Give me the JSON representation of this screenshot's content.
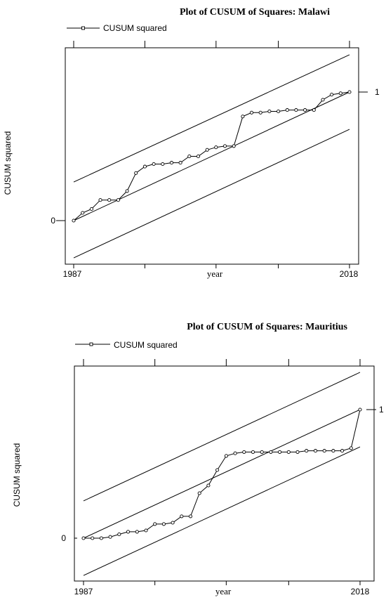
{
  "chart_data": [
    {
      "type": "line",
      "title": "Plot of CUSUM of Squares: Malawi",
      "legend": "CUSUM squared",
      "legend_position": "top-left",
      "xlabel": "year",
      "ylabel": "CUSUM squared",
      "x_tick_labels": [
        "1987",
        "2018"
      ],
      "y_tick_labels": [
        "0",
        "1"
      ],
      "xlim": [
        1987,
        2018
      ],
      "ylim": [
        -0.3,
        1.33
      ],
      "grid": false,
      "series": [
        {
          "name": "CUSUM squared",
          "x": [
            1987,
            1988,
            1989,
            1990,
            1991,
            1992,
            1993,
            1994,
            1995,
            1996,
            1997,
            1998,
            1999,
            2000,
            2001,
            2002,
            2003,
            2004,
            2005,
            2006,
            2007,
            2008,
            2009,
            2010,
            2011,
            2012,
            2013,
            2014,
            2015,
            2016,
            2017,
            2018
          ],
          "values": [
            0.0,
            0.06,
            0.09,
            0.16,
            0.16,
            0.16,
            0.23,
            0.37,
            0.42,
            0.44,
            0.44,
            0.45,
            0.45,
            0.5,
            0.5,
            0.55,
            0.57,
            0.58,
            0.58,
            0.81,
            0.84,
            0.84,
            0.85,
            0.85,
            0.86,
            0.86,
            0.86,
            0.86,
            0.94,
            0.98,
            0.99,
            1.0
          ]
        }
      ],
      "bounds": {
        "center": [
          [
            1987,
            0.0
          ],
          [
            2018,
            1.0
          ]
        ],
        "upper": [
          [
            1987,
            0.3
          ],
          [
            2018,
            1.29
          ]
        ],
        "lower": [
          [
            1987,
            -0.29
          ],
          [
            2018,
            0.71
          ]
        ]
      }
    },
    {
      "type": "line",
      "title": "Plot of CUSUM of Squares: Mauritius",
      "legend": "CUSUM squared",
      "legend_position": "top-left",
      "xlabel": "year",
      "ylabel": "CUSUM squared",
      "x_tick_labels": [
        "1987",
        "2018"
      ],
      "y_tick_labels": [
        "0",
        "1"
      ],
      "xlim": [
        1987,
        2018
      ],
      "ylim": [
        -0.3,
        1.33
      ],
      "grid": false,
      "series": [
        {
          "name": "CUSUM squared",
          "x": [
            1987,
            1988,
            1989,
            1990,
            1991,
            1992,
            1993,
            1994,
            1995,
            1996,
            1997,
            1998,
            1999,
            2000,
            2001,
            2002,
            2003,
            2004,
            2005,
            2006,
            2007,
            2008,
            2009,
            2010,
            2011,
            2012,
            2013,
            2014,
            2015,
            2016,
            2017,
            2018
          ],
          "values": [
            0.0,
            0.0,
            0.0,
            0.01,
            0.03,
            0.05,
            0.05,
            0.06,
            0.11,
            0.11,
            0.12,
            0.17,
            0.17,
            0.35,
            0.41,
            0.53,
            0.64,
            0.66,
            0.67,
            0.67,
            0.67,
            0.67,
            0.67,
            0.67,
            0.67,
            0.68,
            0.68,
            0.68,
            0.68,
            0.68,
            0.7,
            1.0
          ]
        }
      ],
      "bounds": {
        "center": [
          [
            1987,
            0.0
          ],
          [
            2018,
            1.0
          ]
        ],
        "upper": [
          [
            1987,
            0.29
          ],
          [
            2018,
            1.29
          ]
        ],
        "lower": [
          [
            1987,
            -0.29
          ],
          [
            2018,
            0.71
          ]
        ]
      }
    }
  ]
}
